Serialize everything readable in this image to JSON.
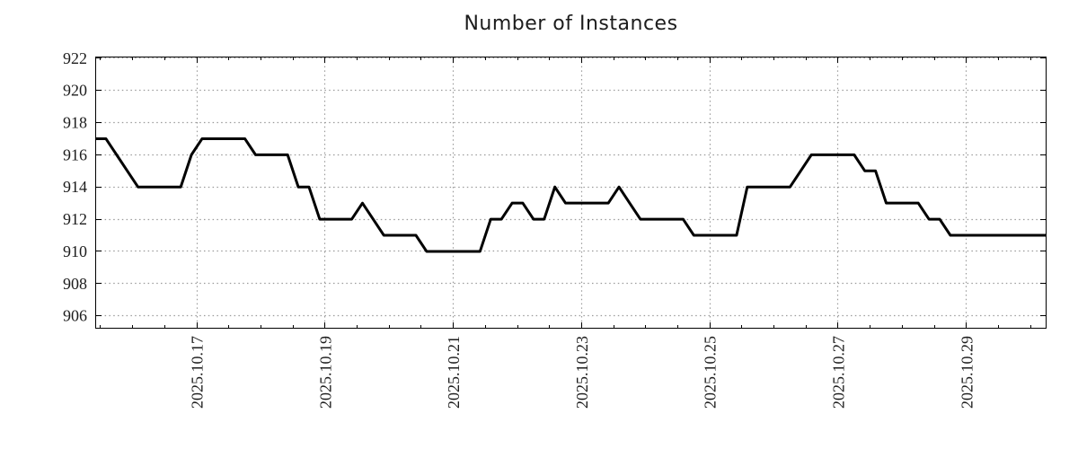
{
  "page": {
    "background": "#ffffff"
  },
  "chart_data": {
    "type": "line",
    "title": "Number of Instances",
    "xlabel": "",
    "ylabel": "",
    "legend": "none",
    "grid": "dotted",
    "x_start": "2025-10-15T10:00:00",
    "x_end": "2025-10-30T06:00:00",
    "interval_hours": 4,
    "series": [
      {
        "name": "instances",
        "values": [
          917,
          917,
          916,
          915,
          914,
          914,
          914,
          914,
          914,
          916,
          917,
          917,
          917,
          917,
          917,
          916,
          916,
          916,
          916,
          914,
          914,
          912,
          912,
          912,
          912,
          913,
          912,
          911,
          911,
          911,
          911,
          910,
          910,
          910,
          910,
          910,
          910,
          912,
          912,
          913,
          913,
          912,
          912,
          914,
          913,
          913,
          913,
          913,
          913,
          914,
          913,
          912,
          912,
          912,
          912,
          912,
          911,
          911,
          911,
          911,
          911,
          914,
          914,
          914,
          914,
          914,
          915,
          916,
          916,
          916,
          916,
          916,
          915,
          915,
          913,
          913,
          913,
          913,
          912,
          912,
          911,
          911,
          911,
          911,
          911,
          911,
          911,
          911,
          911,
          911
        ]
      }
    ],
    "ylim": [
      905.2,
      922.1
    ],
    "yticks": [
      906,
      908,
      910,
      912,
      914,
      916,
      918,
      920,
      922
    ],
    "xtick_labels": [
      "2025.10.17",
      "2025.10.19",
      "2025.10.21",
      "2025.10.23",
      "2025.10.25",
      "2025.10.27",
      "2025.10.29"
    ],
    "minor_xtick_hours": 12,
    "line_color": "#000000",
    "line_width": 3,
    "grid_color": "#9b9b9b",
    "axis_color": "#000000",
    "label_color": "#1c1c1c"
  }
}
